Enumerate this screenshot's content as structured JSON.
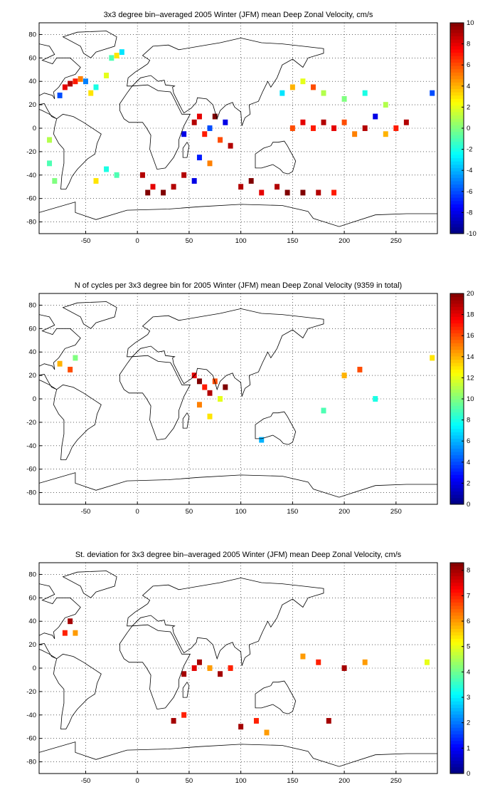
{
  "chart_data": [
    {
      "type": "heatmap",
      "title": "3x3 degree bin–averaged 2005 Winter (JFM) mean Deep Zonal Velocity, cm/s",
      "xlim": [
        -95,
        290
      ],
      "ylim": [
        -90,
        90
      ],
      "xticks": [
        "-50",
        "0",
        "50",
        "100",
        "150",
        "200",
        "250"
      ],
      "yticks": [
        "80",
        "60",
        "40",
        "20",
        "0",
        "-20",
        "-40",
        "-60",
        "-80"
      ],
      "colorbar": {
        "min": -10,
        "max": 10,
        "ticks": [
          "10",
          "8",
          "6",
          "4",
          "2",
          "0",
          "-2",
          "-4",
          "-6",
          "-8",
          "-10"
        ]
      },
      "grid": true,
      "cells": [
        {
          "lon": -75,
          "lat": 28,
          "v": -6
        },
        {
          "lon": -70,
          "lat": 35,
          "v": 8
        },
        {
          "lon": -65,
          "lat": 38,
          "v": 9
        },
        {
          "lon": -60,
          "lat": 40,
          "v": 7
        },
        {
          "lon": -55,
          "lat": 42,
          "v": 5
        },
        {
          "lon": -50,
          "lat": 40,
          "v": -5
        },
        {
          "lon": -45,
          "lat": 30,
          "v": 3
        },
        {
          "lon": -40,
          "lat": 35,
          "v": -2
        },
        {
          "lon": -30,
          "lat": 45,
          "v": 2
        },
        {
          "lon": -25,
          "lat": 60,
          "v": -1
        },
        {
          "lon": -20,
          "lat": 62,
          "v": 3
        },
        {
          "lon": -15,
          "lat": 65,
          "v": -3
        },
        {
          "lon": -85,
          "lat": -10,
          "v": 1
        },
        {
          "lon": -85,
          "lat": -30,
          "v": -1
        },
        {
          "lon": -80,
          "lat": -45,
          "v": 0
        },
        {
          "lon": -30,
          "lat": -35,
          "v": -2
        },
        {
          "lon": -40,
          "lat": -45,
          "v": 3
        },
        {
          "lon": -20,
          "lat": -40,
          "v": -1
        },
        {
          "lon": 5,
          "lat": -40,
          "v": 9
        },
        {
          "lon": 10,
          "lat": -55,
          "v": 10
        },
        {
          "lon": 15,
          "lat": -50,
          "v": 8
        },
        {
          "lon": 25,
          "lat": -55,
          "v": 10
        },
        {
          "lon": 35,
          "lat": -50,
          "v": 9
        },
        {
          "lon": 45,
          "lat": -40,
          "v": 9
        },
        {
          "lon": 55,
          "lat": -45,
          "v": -8
        },
        {
          "lon": 45,
          "lat": -5,
          "v": -8
        },
        {
          "lon": 55,
          "lat": 5,
          "v": 9
        },
        {
          "lon": 60,
          "lat": 10,
          "v": 8
        },
        {
          "lon": 65,
          "lat": -5,
          "v": 7
        },
        {
          "lon": 70,
          "lat": 0,
          "v": -6
        },
        {
          "lon": 75,
          "lat": 10,
          "v": 10
        },
        {
          "lon": 80,
          "lat": -10,
          "v": 6
        },
        {
          "lon": 85,
          "lat": 5,
          "v": -8
        },
        {
          "lon": 90,
          "lat": -15,
          "v": 9
        },
        {
          "lon": 60,
          "lat": -25,
          "v": -7
        },
        {
          "lon": 70,
          "lat": -30,
          "v": 5
        },
        {
          "lon": 100,
          "lat": -50,
          "v": 9
        },
        {
          "lon": 110,
          "lat": -45,
          "v": 10
        },
        {
          "lon": 120,
          "lat": -55,
          "v": 8
        },
        {
          "lon": 135,
          "lat": -50,
          "v": 9
        },
        {
          "lon": 145,
          "lat": -55,
          "v": 10
        },
        {
          "lon": 160,
          "lat": -55,
          "v": 10
        },
        {
          "lon": 175,
          "lat": -55,
          "v": 9
        },
        {
          "lon": 190,
          "lat": -55,
          "v": 7
        },
        {
          "lon": 150,
          "lat": 0,
          "v": 6
        },
        {
          "lon": 160,
          "lat": 5,
          "v": 8
        },
        {
          "lon": 170,
          "lat": 0,
          "v": 7
        },
        {
          "lon": 180,
          "lat": 5,
          "v": 9
        },
        {
          "lon": 190,
          "lat": 0,
          "v": 8
        },
        {
          "lon": 200,
          "lat": 5,
          "v": 6
        },
        {
          "lon": 210,
          "lat": -5,
          "v": 5
        },
        {
          "lon": 220,
          "lat": 0,
          "v": 9
        },
        {
          "lon": 230,
          "lat": 10,
          "v": -8
        },
        {
          "lon": 240,
          "lat": -5,
          "v": 4
        },
        {
          "lon": 250,
          "lat": 0,
          "v": 7
        },
        {
          "lon": 260,
          "lat": 5,
          "v": 9
        },
        {
          "lon": 140,
          "lat": 30,
          "v": -3
        },
        {
          "lon": 150,
          "lat": 35,
          "v": 4
        },
        {
          "lon": 160,
          "lat": 40,
          "v": 2
        },
        {
          "lon": 170,
          "lat": 35,
          "v": 6
        },
        {
          "lon": 180,
          "lat": 30,
          "v": 1
        },
        {
          "lon": 200,
          "lat": 25,
          "v": 0
        },
        {
          "lon": 220,
          "lat": 30,
          "v": -2
        },
        {
          "lon": 240,
          "lat": 20,
          "v": 1
        },
        {
          "lon": 285,
          "lat": 30,
          "v": -6
        }
      ]
    },
    {
      "type": "heatmap",
      "title": "N of cycles per 3x3 degree bin for 2005 Winter (JFM) mean Deep Zonal Velocity (9359 in total)",
      "xlim": [
        -95,
        290
      ],
      "ylim": [
        -90,
        90
      ],
      "xticks": [
        "-50",
        "0",
        "50",
        "100",
        "150",
        "200",
        "250"
      ],
      "yticks": [
        "80",
        "60",
        "40",
        "20",
        "0",
        "-20",
        "-40",
        "-60",
        "-80"
      ],
      "colorbar": {
        "min": 0,
        "max": 20,
        "ticks": [
          "20",
          "18",
          "16",
          "14",
          "12",
          "10",
          "8",
          "6",
          "4",
          "2",
          "0"
        ]
      },
      "grid": true,
      "cells": [
        {
          "lon": -75,
          "lat": 30,
          "v": 14
        },
        {
          "lon": -65,
          "lat": 25,
          "v": 16
        },
        {
          "lon": -60,
          "lat": 35,
          "v": 10
        },
        {
          "lon": 55,
          "lat": 20,
          "v": 18
        },
        {
          "lon": 60,
          "lat": 15,
          "v": 20
        },
        {
          "lon": 65,
          "lat": 10,
          "v": 17
        },
        {
          "lon": 70,
          "lat": 5,
          "v": 19
        },
        {
          "lon": 75,
          "lat": 15,
          "v": 16
        },
        {
          "lon": 80,
          "lat": 0,
          "v": 12
        },
        {
          "lon": 85,
          "lat": 10,
          "v": 20
        },
        {
          "lon": 60,
          "lat": -5,
          "v": 15
        },
        {
          "lon": 70,
          "lat": -15,
          "v": 13
        },
        {
          "lon": 200,
          "lat": 20,
          "v": 14
        },
        {
          "lon": 215,
          "lat": 25,
          "v": 16
        },
        {
          "lon": 285,
          "lat": 35,
          "v": 13
        },
        {
          "lon": 180,
          "lat": -10,
          "v": 9
        },
        {
          "lon": 230,
          "lat": 0,
          "v": 8
        },
        {
          "lon": 120,
          "lat": -35,
          "v": 6
        }
      ]
    },
    {
      "type": "heatmap",
      "title": "St. deviation for 3x3 degree bin–averaged 2005 Winter (JFM) mean Deep Zonal Velocity, cm/s",
      "xlim": [
        -95,
        290
      ],
      "ylim": [
        -90,
        90
      ],
      "xticks": [
        "-50",
        "0",
        "50",
        "100",
        "150",
        "200",
        "250"
      ],
      "yticks": [
        "80",
        "60",
        "40",
        "20",
        "0",
        "-20",
        "-40",
        "-60",
        "-80"
      ],
      "colorbar": {
        "min": 0,
        "max": 8.3,
        "ticks": [
          "8",
          "7",
          "6",
          "5",
          "4",
          "3",
          "2",
          "1",
          "0"
        ]
      },
      "grid": true,
      "cells": [
        {
          "lon": -70,
          "lat": 30,
          "v": 7
        },
        {
          "lon": -65,
          "lat": 40,
          "v": 8
        },
        {
          "lon": -60,
          "lat": 30,
          "v": 6
        },
        {
          "lon": 45,
          "lat": -5,
          "v": 8
        },
        {
          "lon": 55,
          "lat": 0,
          "v": 7.5
        },
        {
          "lon": 60,
          "lat": 5,
          "v": 8
        },
        {
          "lon": 70,
          "lat": 0,
          "v": 6
        },
        {
          "lon": 80,
          "lat": -5,
          "v": 8
        },
        {
          "lon": 90,
          "lat": 0,
          "v": 7
        },
        {
          "lon": 35,
          "lat": -45,
          "v": 8
        },
        {
          "lon": 45,
          "lat": -40,
          "v": 7
        },
        {
          "lon": 100,
          "lat": -50,
          "v": 8
        },
        {
          "lon": 115,
          "lat": -45,
          "v": 7
        },
        {
          "lon": 125,
          "lat": -55,
          "v": 6
        },
        {
          "lon": 185,
          "lat": -45,
          "v": 8
        },
        {
          "lon": 160,
          "lat": 10,
          "v": 6
        },
        {
          "lon": 175,
          "lat": 5,
          "v": 7
        },
        {
          "lon": 200,
          "lat": 0,
          "v": 8
        },
        {
          "lon": 220,
          "lat": 5,
          "v": 6
        },
        {
          "lon": 280,
          "lat": 5,
          "v": 5
        }
      ]
    }
  ]
}
